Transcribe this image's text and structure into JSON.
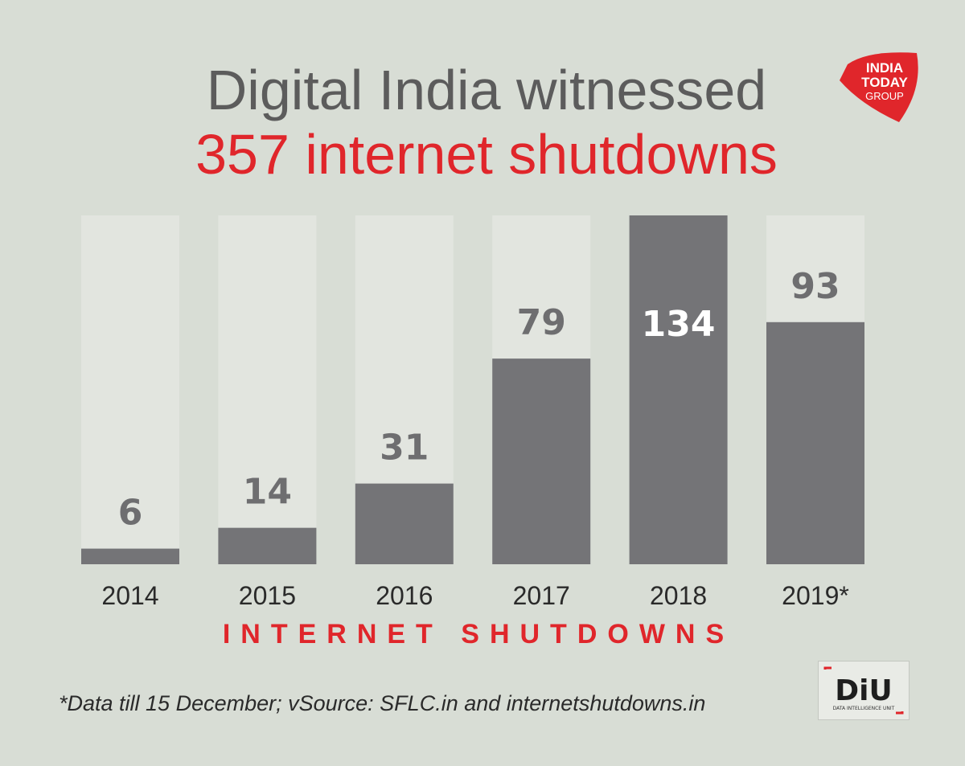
{
  "title": {
    "line1": "Digital India witnessed",
    "line2": "357 internet shutdowns"
  },
  "chart_data": {
    "type": "bar",
    "title": "Digital India witnessed 357 internet shutdowns",
    "xlabel": "INTERNET SHUTDOWNS",
    "ylabel": "",
    "categories": [
      "2014",
      "2015",
      "2016",
      "2017",
      "2018",
      "2019*"
    ],
    "values": [
      6,
      14,
      31,
      79,
      134,
      93
    ],
    "ylim": [
      0,
      134
    ],
    "grid": false
  },
  "footnote": "*Data till 15 December; vSource: SFLC.in and internetshutdowns.in",
  "logos": {
    "india_today": [
      "INDIA",
      "TODAY",
      "GROUP"
    ],
    "diu": {
      "name": "DiU",
      "tagline": "DATA INTELLIGENCE UNIT"
    }
  },
  "colors": {
    "background": "#d8ddd5",
    "bar_track": "#e2e5df",
    "bar_fill": "#747477",
    "label_dark": "#6e6e70",
    "label_light": "#ffffff",
    "accent": "#e0262b",
    "title_gray": "#5c5c5c"
  }
}
